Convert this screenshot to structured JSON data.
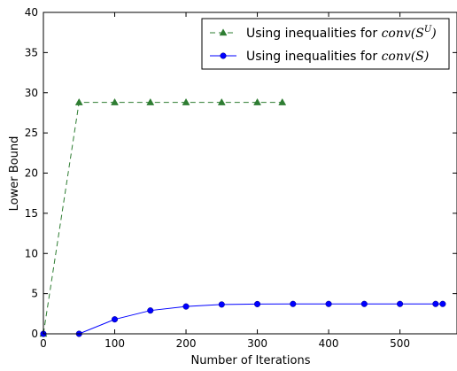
{
  "chart_data": {
    "type": "line",
    "title": "",
    "xlabel": "Number of Iterations",
    "ylabel": "Lower Bound",
    "xlim": [
      0,
      580
    ],
    "ylim": [
      0,
      40
    ],
    "xticks": [
      0,
      100,
      200,
      300,
      400,
      500
    ],
    "yticks": [
      0,
      5,
      10,
      15,
      20,
      25,
      30,
      35,
      40
    ],
    "grid": false,
    "legend_position": "top-right",
    "series": [
      {
        "name_prefix": "Using inequalities for ",
        "name_math": "conv",
        "name_math_arg": "S",
        "name_math_sup": "U",
        "color": "#2e7d32",
        "marker": "triangle",
        "line_style": "dashed",
        "x": [
          0,
          50,
          100,
          150,
          200,
          250,
          300,
          335
        ],
        "y": [
          0,
          28.8,
          28.8,
          28.8,
          28.8,
          28.8,
          28.8,
          28.8
        ]
      },
      {
        "name_prefix": "Using inequalities for ",
        "name_math": "conv",
        "name_math_arg": "S",
        "name_math_sup": "",
        "color": "#0000ff",
        "marker": "circle",
        "line_style": "solid",
        "x": [
          0,
          50,
          100,
          150,
          200,
          250,
          300,
          350,
          400,
          450,
          500,
          550,
          560
        ],
        "y": [
          0,
          0,
          1.8,
          2.9,
          3.4,
          3.65,
          3.7,
          3.72,
          3.72,
          3.72,
          3.72,
          3.72,
          3.72
        ]
      }
    ]
  }
}
